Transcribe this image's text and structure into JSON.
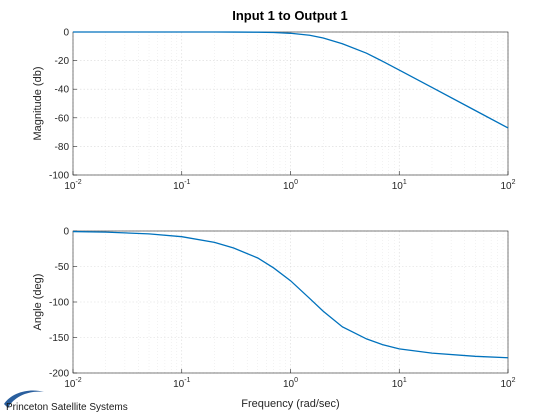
{
  "chart_data": [
    {
      "type": "line",
      "title": "Input 1 to Output 1",
      "xlabel": "",
      "ylabel": "Magnitude (db)",
      "xscale": "log",
      "xlim": [
        0.01,
        100
      ],
      "ylim": [
        -100,
        0
      ],
      "yticks": [
        0,
        -20,
        -40,
        -60,
        -80,
        -100
      ],
      "xticks": [
        {
          "base": "10",
          "exp": "-2"
        },
        {
          "base": "10",
          "exp": "-1"
        },
        {
          "base": "10",
          "exp": "0"
        },
        {
          "base": "10",
          "exp": "1"
        },
        {
          "base": "10",
          "exp": "2"
        }
      ],
      "grid": true,
      "series": [
        {
          "x": [
            0.01,
            0.02,
            0.05,
            0.1,
            0.2,
            0.3,
            0.5,
            0.7,
            1,
            1.5,
            2,
            3,
            5,
            7,
            10,
            20,
            50,
            100
          ],
          "y": [
            0,
            0,
            0,
            0,
            -0.01,
            -0.03,
            -0.14,
            -0.35,
            -0.9,
            -2.3,
            -4.2,
            -8.2,
            -14.8,
            -20.4,
            -26.6,
            -38.8,
            -54.9,
            -67.1
          ]
        }
      ]
    },
    {
      "type": "line",
      "title": "",
      "xlabel": "Frequency (rad/sec)",
      "ylabel": "Angle (deg)",
      "xscale": "log",
      "xlim": [
        0.01,
        100
      ],
      "ylim": [
        -200,
        0
      ],
      "yticks": [
        0,
        -50,
        -100,
        -150,
        -200
      ],
      "xticks": [
        {
          "base": "10",
          "exp": "-2"
        },
        {
          "base": "10",
          "exp": "-1"
        },
        {
          "base": "10",
          "exp": "0"
        },
        {
          "base": "10",
          "exp": "1"
        },
        {
          "base": "10",
          "exp": "2"
        }
      ],
      "grid": true,
      "series": [
        {
          "x": [
            0.01,
            0.02,
            0.05,
            0.1,
            0.2,
            0.3,
            0.5,
            0.7,
            1,
            1.5,
            2,
            3,
            5,
            7,
            10,
            20,
            50,
            100
          ],
          "y": [
            -0.8,
            -1.6,
            -4,
            -8,
            -16,
            -24,
            -38,
            -52,
            -70,
            -95,
            -113,
            -135,
            -152,
            -160,
            -166,
            -172,
            -176.5,
            -178.5
          ]
        }
      ]
    }
  ],
  "branding": {
    "company": "Princeton Satellite Systems",
    "logo_icon": "swoosh-logo-icon"
  },
  "colors": {
    "line": "#0072bd",
    "logo": "#2a5f9e"
  }
}
